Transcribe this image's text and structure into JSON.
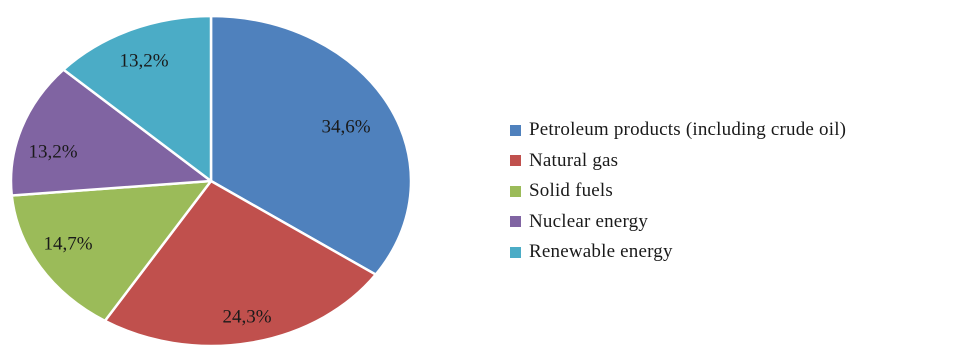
{
  "chart_data": {
    "type": "pie",
    "slices": [
      {
        "name": "Petroleum products (including crude oil)",
        "value": 34.6,
        "label": "34,6%",
        "color": "#4f81bd"
      },
      {
        "name": "Natural gas",
        "value": 24.3,
        "label": "24,3%",
        "color": "#c0504d"
      },
      {
        "name": "Solid fuels",
        "value": 14.7,
        "label": "14,7%",
        "color": "#9bbb59"
      },
      {
        "name": "Nuclear energy",
        "value": 13.2,
        "label": "13,2%",
        "color": "#8064a2"
      },
      {
        "name": "Renewable energy",
        "value": 13.2,
        "label": "13,2%",
        "color": "#4bacc6"
      }
    ],
    "start_angle_deg": 0,
    "direction": "clockwise",
    "legend_position": "right"
  }
}
